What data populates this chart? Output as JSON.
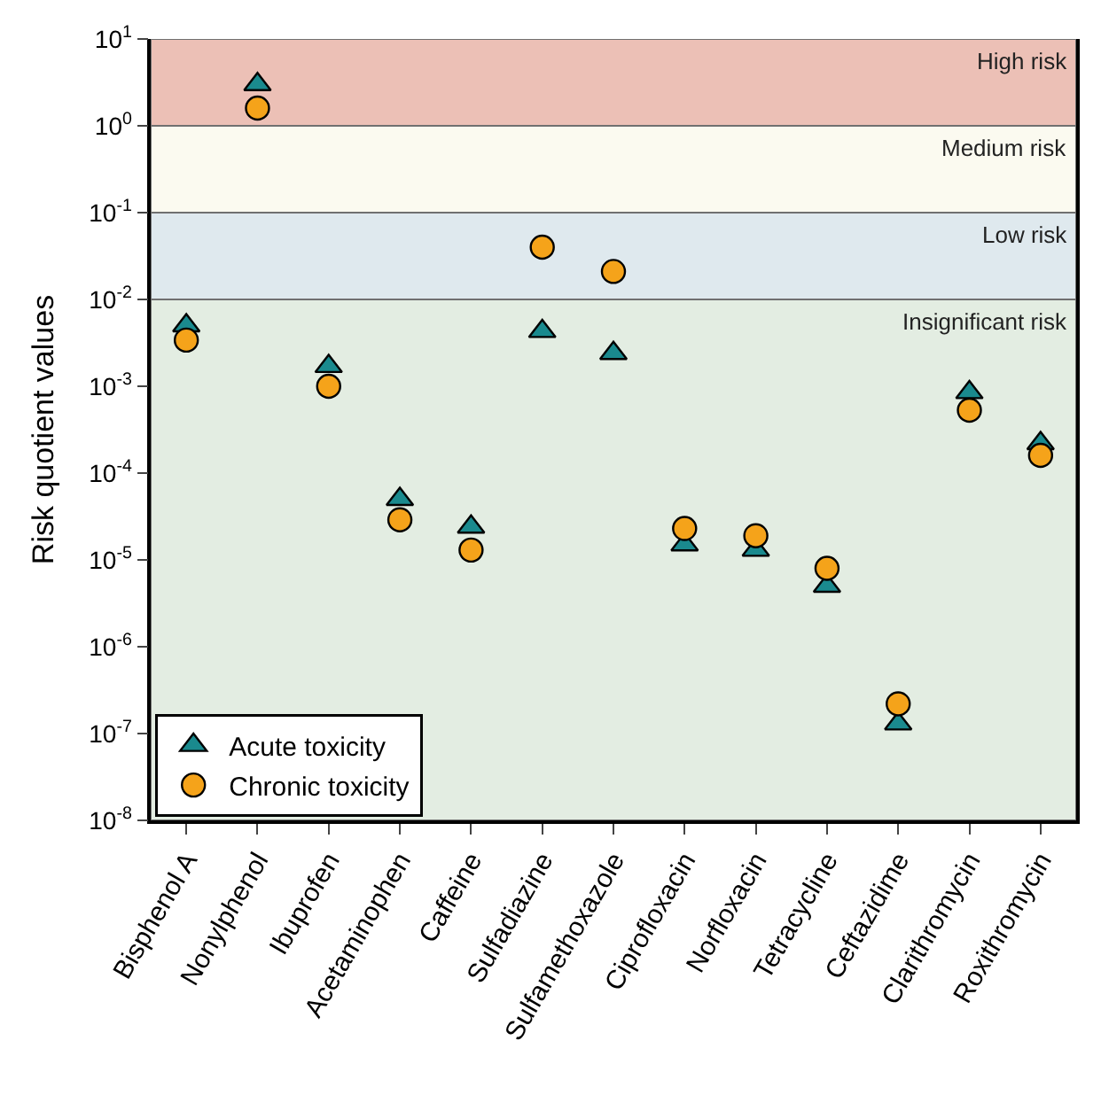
{
  "chart_data": {
    "type": "scatter",
    "ylabel": "Risk quotient values",
    "categories": [
      "Bisphenol A",
      "Nonylphenol",
      "Ibuprofen",
      "Acetaminophen",
      "Caffeine",
      "Sulfadiazine",
      "Sulfamethoxazole",
      "Ciprofloxacin",
      "Norfloxacin",
      "Tetracycline",
      "Ceftazidime",
      "Clarithromycin",
      "Roxithromycin"
    ],
    "series": [
      {
        "name": "Acute toxicity",
        "color": "#1a8a8e",
        "marker": "triangle",
        "values": [
          0.005,
          3,
          0.0017,
          5e-05,
          2.4e-05,
          0.0043,
          0.0024,
          1.5e-05,
          1.3e-05,
          5e-06,
          1.3e-07,
          0.00085,
          0.00022
        ]
      },
      {
        "name": "Chronic toxicity",
        "color": "#f5a31a",
        "marker": "circle",
        "values": [
          0.0034,
          1.6,
          0.001,
          2.9e-05,
          1.3e-05,
          0.04,
          0.021,
          2.3e-05,
          1.9e-05,
          8e-06,
          2.2e-07,
          0.00053,
          0.00016
        ]
      }
    ],
    "log": "y",
    "ylim": [
      1e-08,
      10
    ],
    "yticks": [
      {
        "value": 1e-08,
        "label": "10$^{-8}$"
      },
      {
        "value": 1e-07,
        "label": "10$^{-7}$"
      },
      {
        "value": 1e-06,
        "label": "10$^{-6}$"
      },
      {
        "value": 1e-05,
        "label": "10$^{-5}$"
      },
      {
        "value": 0.0001,
        "label": "10$^{-4}$"
      },
      {
        "value": 0.001,
        "label": "10$^{-3}$"
      },
      {
        "value": 0.01,
        "label": "10$^{-2}$"
      },
      {
        "value": 0.1,
        "label": "10$^{-1}$"
      },
      {
        "value": 1,
        "label": "10$^{0}$"
      },
      {
        "value": 10,
        "label": "10$^{1}$"
      }
    ],
    "bands": [
      {
        "axis": "y",
        "from": 1,
        "to": 10,
        "label": "High risk",
        "color": "#ecc0b6"
      },
      {
        "axis": "y",
        "from": 0.1,
        "to": 1,
        "label": "Medium risk",
        "color": "#fbfaf0"
      },
      {
        "axis": "y",
        "from": 0.01,
        "to": 0.1,
        "label": "Low risk",
        "color": "#dfe9ee"
      },
      {
        "axis": "y",
        "from": 1e-08,
        "to": 0.01,
        "label": "Insignificant risk",
        "color": "#e3ede2"
      }
    ],
    "grid": false,
    "legend": "bottom left"
  }
}
